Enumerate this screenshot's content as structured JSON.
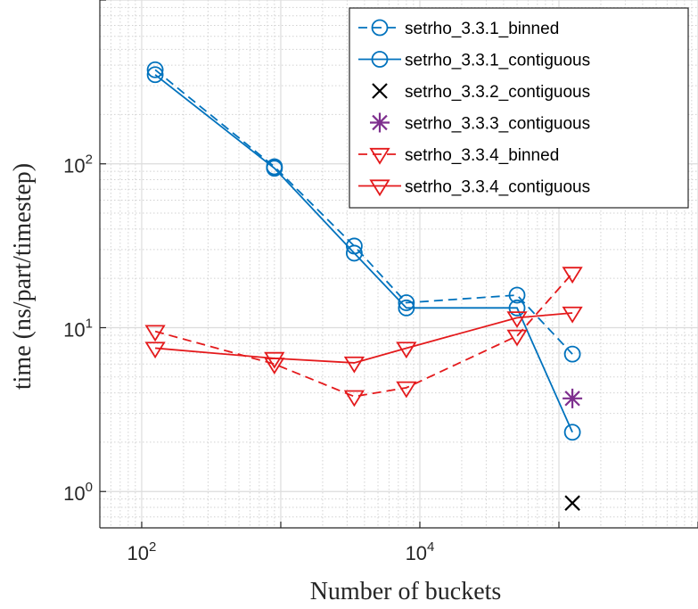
{
  "chart_data": {
    "type": "line",
    "title": "",
    "xlabel": "Number of buckets",
    "ylabel": "time (ns/part/timestep)",
    "xscale": "log",
    "yscale": "log",
    "xlim": [
      50,
      1000000
    ],
    "ylim": [
      0.6,
      1000
    ],
    "grid": true,
    "legend_position": "top-right",
    "x_ticks": [
      {
        "base": "10",
        "exp": "2",
        "value": 100
      },
      {
        "base": "10",
        "exp": "4",
        "value": 10000
      }
    ],
    "y_ticks": [
      {
        "base": "10",
        "exp": "0",
        "value": 1
      },
      {
        "base": "10",
        "exp": "1",
        "value": 10
      },
      {
        "base": "10",
        "exp": "2",
        "value": 100
      }
    ],
    "series": [
      {
        "name": "setrho_3.3.1_binned",
        "color": "#0072BD",
        "dash": "dashed",
        "marker": "circle",
        "points": [
          [
            125,
            375
          ],
          [
            900,
            96
          ],
          [
            3375,
            31.5
          ],
          [
            8000,
            14.2
          ],
          [
            50000,
            15.8
          ],
          [
            125000,
            6.9
          ]
        ]
      },
      {
        "name": "setrho_3.3.1_contiguous",
        "color": "#0072BD",
        "dash": "solid",
        "marker": "circle",
        "points": [
          [
            125,
            350
          ],
          [
            900,
            94
          ],
          [
            3375,
            28.5
          ],
          [
            8000,
            13.2
          ],
          [
            50000,
            13.2
          ],
          [
            125000,
            2.3
          ]
        ]
      },
      {
        "name": "setrho_3.3.2_contiguous",
        "color": "#000000",
        "dash": "none",
        "marker": "x",
        "points": [
          [
            125000,
            0.85
          ]
        ]
      },
      {
        "name": "setrho_3.3.3_contiguous",
        "color": "#7E2F8E",
        "dash": "none",
        "marker": "asterisk",
        "points": [
          [
            125000,
            3.7
          ]
        ]
      },
      {
        "name": "setrho_3.3.4_binned",
        "color": "#E41A1C",
        "dash": "dashed",
        "marker": "triangle-down",
        "points": [
          [
            125,
            9.5
          ],
          [
            900,
            6.0
          ],
          [
            3375,
            3.8
          ],
          [
            8000,
            4.3
          ],
          [
            50000,
            8.9
          ],
          [
            125000,
            21.5
          ]
        ]
      },
      {
        "name": "setrho_3.3.4_contiguous",
        "color": "#E41A1C",
        "dash": "solid",
        "marker": "triangle-down",
        "points": [
          [
            125,
            7.5
          ],
          [
            900,
            6.5
          ],
          [
            3375,
            6.1
          ],
          [
            8000,
            7.5
          ],
          [
            50000,
            11.5
          ],
          [
            125000,
            12.3
          ]
        ]
      }
    ]
  }
}
